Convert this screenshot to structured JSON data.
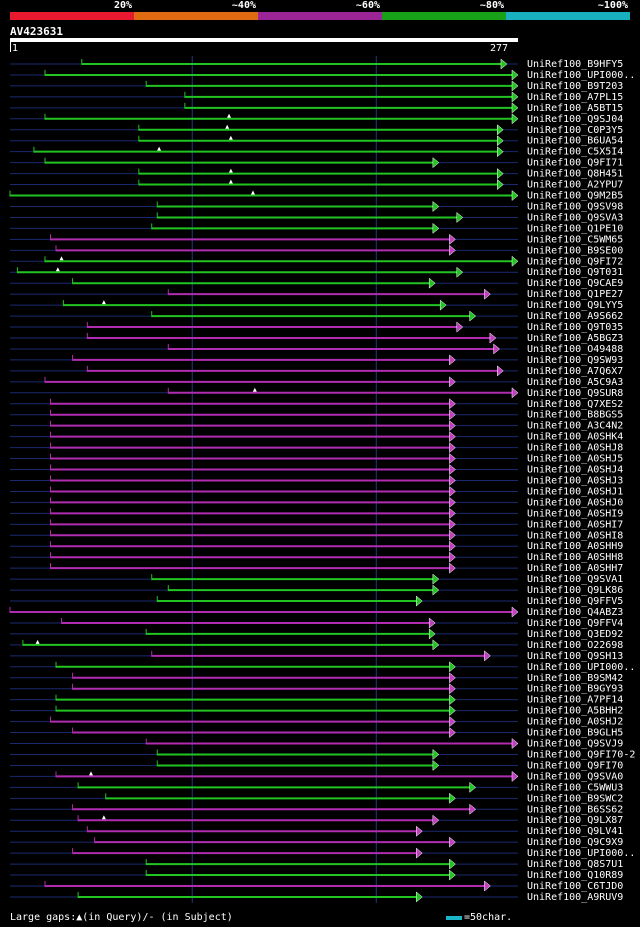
{
  "legend": {
    "segments": [
      {
        "label": "20%",
        "color": "#e8182e"
      },
      {
        "label": "~40%",
        "color": "#e06a12"
      },
      {
        "label": "~60%",
        "color": "#9b2597"
      },
      {
        "label": "~80%",
        "color": "#18a018"
      },
      {
        "label": "~100%",
        "color": "#18b0c0"
      }
    ]
  },
  "query": {
    "name": "AV423631",
    "start": "1",
    "end": "277",
    "length": 277
  },
  "colors": {
    "green": "#22c422",
    "purple": "#b02cb0",
    "thin": "#1a2a70",
    "grid": "#233a80",
    "arrow_green": "#22c422",
    "arrow_purple": "#c040c0"
  },
  "hits": [
    {
      "name": "UniRef100_B9HFY5",
      "start": 40,
      "end": 271,
      "color": "green",
      "gap": null
    },
    {
      "name": "UniRef100_UPI000..",
      "start": 20,
      "end": 277,
      "color": "green",
      "gap": null
    },
    {
      "name": "UniRef100_B9T203",
      "start": 75,
      "end": 277,
      "color": "green",
      "gap": null
    },
    {
      "name": "UniRef100_A7PL15",
      "start": 96,
      "end": 277,
      "color": "green",
      "gap": null
    },
    {
      "name": "UniRef100_A5BT15",
      "start": 96,
      "end": 277,
      "color": "green",
      "gap": null
    },
    {
      "name": "UniRef100_Q9SJ04",
      "start": 20,
      "end": 277,
      "color": "green",
      "gap": 120
    },
    {
      "name": "UniRef100_C0P3Y5",
      "start": 71,
      "end": 269,
      "color": "green",
      "gap": 119
    },
    {
      "name": "UniRef100_B6UA54",
      "start": 71,
      "end": 269,
      "color": "green",
      "gap": 121
    },
    {
      "name": "UniRef100_C5X5I4",
      "start": 14,
      "end": 269,
      "color": "green",
      "gap": 82
    },
    {
      "name": "UniRef100_Q9FI71",
      "start": 20,
      "end": 234,
      "color": "green",
      "gap": null
    },
    {
      "name": "UniRef100_Q8H451",
      "start": 71,
      "end": 269,
      "color": "green",
      "gap": 121
    },
    {
      "name": "UniRef100_A2YPU7",
      "start": 71,
      "end": 269,
      "color": "green",
      "gap": 121
    },
    {
      "name": "UniRef100_Q9M2B5",
      "start": 1,
      "end": 277,
      "color": "green",
      "gap": 133
    },
    {
      "name": "UniRef100_Q9SV98",
      "start": 81,
      "end": 234,
      "color": "green",
      "gap": null
    },
    {
      "name": "UniRef100_Q9SVA3",
      "start": 81,
      "end": 247,
      "color": "green",
      "gap": null
    },
    {
      "name": "UniRef100_Q1PE10",
      "start": 78,
      "end": 234,
      "color": "green",
      "gap": null
    },
    {
      "name": "UniRef100_C5WM65",
      "start": 23,
      "end": 243,
      "color": "purple",
      "gap": null
    },
    {
      "name": "UniRef100_B9SE00",
      "start": 26,
      "end": 243,
      "color": "purple",
      "gap": null
    },
    {
      "name": "UniRef100_Q9FI72",
      "start": 20,
      "end": 277,
      "color": "green",
      "gap": 29
    },
    {
      "name": "UniRef100_Q9T031",
      "start": 5,
      "end": 247,
      "color": "green",
      "gap": 27
    },
    {
      "name": "UniRef100_Q9CAE9",
      "start": 35,
      "end": 232,
      "color": "green",
      "gap": null
    },
    {
      "name": "UniRef100_Q1PE27",
      "start": 87,
      "end": 262,
      "color": "purple",
      "gap": null
    },
    {
      "name": "UniRef100_Q9LYY5",
      "start": 30,
      "end": 238,
      "color": "green",
      "gap": 52
    },
    {
      "name": "UniRef100_A9S662",
      "start": 78,
      "end": 254,
      "color": "green",
      "gap": null
    },
    {
      "name": "UniRef100_Q9T035",
      "start": 43,
      "end": 247,
      "color": "purple",
      "gap": null
    },
    {
      "name": "UniRef100_A5BGZ3",
      "start": 43,
      "end": 265,
      "color": "purple",
      "gap": null
    },
    {
      "name": "UniRef100_O49488",
      "start": 87,
      "end": 267,
      "color": "purple",
      "gap": null
    },
    {
      "name": "UniRef100_Q9SW93",
      "start": 35,
      "end": 243,
      "color": "purple",
      "gap": null
    },
    {
      "name": "UniRef100_A7Q6X7",
      "start": 43,
      "end": 269,
      "color": "purple",
      "gap": null
    },
    {
      "name": "UniRef100_A5C9A3",
      "start": 20,
      "end": 243,
      "color": "purple",
      "gap": null
    },
    {
      "name": "UniRef100_Q9SUR8",
      "start": 87,
      "end": 277,
      "color": "purple",
      "gap": 134
    },
    {
      "name": "UniRef100_Q7XES2",
      "start": 23,
      "end": 243,
      "color": "purple",
      "gap": null
    },
    {
      "name": "UniRef100_B8BGS5",
      "start": 23,
      "end": 243,
      "color": "purple",
      "gap": null
    },
    {
      "name": "UniRef100_A3C4N2",
      "start": 23,
      "end": 243,
      "color": "purple",
      "gap": null
    },
    {
      "name": "UniRef100_A0SHK4",
      "start": 23,
      "end": 243,
      "color": "purple",
      "gap": null
    },
    {
      "name": "UniRef100_A0SHJ8",
      "start": 23,
      "end": 243,
      "color": "purple",
      "gap": null
    },
    {
      "name": "UniRef100_A0SHJ5",
      "start": 23,
      "end": 243,
      "color": "purple",
      "gap": null
    },
    {
      "name": "UniRef100_A0SHJ4",
      "start": 23,
      "end": 243,
      "color": "purple",
      "gap": null
    },
    {
      "name": "UniRef100_A0SHJ3",
      "start": 23,
      "end": 243,
      "color": "purple",
      "gap": null
    },
    {
      "name": "UniRef100_A0SHJ1",
      "start": 23,
      "end": 243,
      "color": "purple",
      "gap": null
    },
    {
      "name": "UniRef100_A0SHJ0",
      "start": 23,
      "end": 243,
      "color": "purple",
      "gap": null
    },
    {
      "name": "UniRef100_A0SHI9",
      "start": 23,
      "end": 243,
      "color": "purple",
      "gap": null
    },
    {
      "name": "UniRef100_A0SHI7",
      "start": 23,
      "end": 243,
      "color": "purple",
      "gap": null
    },
    {
      "name": "UniRef100_A0SHI8",
      "start": 23,
      "end": 243,
      "color": "purple",
      "gap": null
    },
    {
      "name": "UniRef100_A0SHH9",
      "start": 23,
      "end": 243,
      "color": "purple",
      "gap": null
    },
    {
      "name": "UniRef100_A0SHH8",
      "start": 23,
      "end": 243,
      "color": "purple",
      "gap": null
    },
    {
      "name": "UniRef100_A0SHH7",
      "start": 23,
      "end": 243,
      "color": "purple",
      "gap": null
    },
    {
      "name": "UniRef100_Q9SVA1",
      "start": 78,
      "end": 234,
      "color": "green",
      "gap": null
    },
    {
      "name": "UniRef100_Q9LK86",
      "start": 87,
      "end": 234,
      "color": "green",
      "gap": null
    },
    {
      "name": "UniRef100_Q9FFV5",
      "start": 81,
      "end": 225,
      "color": "green",
      "gap": null
    },
    {
      "name": "UniRef100_Q4ABZ3",
      "start": 1,
      "end": 277,
      "color": "purple",
      "gap": null
    },
    {
      "name": "UniRef100_Q9FFV4",
      "start": 29,
      "end": 232,
      "color": "purple",
      "gap": null
    },
    {
      "name": "UniRef100_Q3ED92",
      "start": 75,
      "end": 232,
      "color": "green",
      "gap": null
    },
    {
      "name": "UniRef100_O22698",
      "start": 8,
      "end": 234,
      "color": "green",
      "gap": 16
    },
    {
      "name": "UniRef100_Q9SH13",
      "start": 78,
      "end": 262,
      "color": "purple",
      "gap": null
    },
    {
      "name": "UniRef100_UPI000..",
      "start": 26,
      "end": 243,
      "color": "green",
      "gap": null
    },
    {
      "name": "UniRef100_B9SM42",
      "start": 35,
      "end": 243,
      "color": "purple",
      "gap": null
    },
    {
      "name": "UniRef100_B9GY93",
      "start": 35,
      "end": 243,
      "color": "purple",
      "gap": null
    },
    {
      "name": "UniRef100_A7PF14",
      "start": 26,
      "end": 243,
      "color": "green",
      "gap": null
    },
    {
      "name": "UniRef100_A5BHH2",
      "start": 26,
      "end": 243,
      "color": "green",
      "gap": null
    },
    {
      "name": "UniRef100_A0SHJ2",
      "start": 23,
      "end": 243,
      "color": "purple",
      "gap": null
    },
    {
      "name": "UniRef100_B9GLH5",
      "start": 35,
      "end": 243,
      "color": "purple",
      "gap": null
    },
    {
      "name": "UniRef100_Q9SVJ9",
      "start": 75,
      "end": 277,
      "color": "purple",
      "gap": null
    },
    {
      "name": "UniRef100_Q9FI70-2",
      "start": 81,
      "end": 234,
      "color": "green",
      "gap": null
    },
    {
      "name": "UniRef100_Q9FI70",
      "start": 81,
      "end": 234,
      "color": "green",
      "gap": null
    },
    {
      "name": "UniRef100_Q9SVA0",
      "start": 26,
      "end": 277,
      "color": "purple",
      "gap": 45
    },
    {
      "name": "UniRef100_C5WWU3",
      "start": 38,
      "end": 254,
      "color": "green",
      "gap": null
    },
    {
      "name": "UniRef100_B9SWC2",
      "start": 53,
      "end": 243,
      "color": "green",
      "gap": null
    },
    {
      "name": "UniRef100_B6SS62",
      "start": 35,
      "end": 254,
      "color": "purple",
      "gap": null
    },
    {
      "name": "UniRef100_Q9LX87",
      "start": 38,
      "end": 234,
      "color": "purple",
      "gap": 52
    },
    {
      "name": "UniRef100_Q9LV41",
      "start": 43,
      "end": 225,
      "color": "purple",
      "gap": null
    },
    {
      "name": "UniRef100_Q9C9X9",
      "start": 47,
      "end": 243,
      "color": "purple",
      "gap": null
    },
    {
      "name": "UniRef100_UPI000..",
      "start": 35,
      "end": 225,
      "color": "purple",
      "gap": null
    },
    {
      "name": "UniRef100_Q8S7U1",
      "start": 75,
      "end": 243,
      "color": "green",
      "gap": null
    },
    {
      "name": "UniRef100_Q10R89",
      "start": 75,
      "end": 243,
      "color": "green",
      "gap": null
    },
    {
      "name": "UniRef100_C6TJD0",
      "start": 20,
      "end": 262,
      "color": "purple",
      "gap": null
    },
    {
      "name": "UniRef100_A9RUV9",
      "start": 38,
      "end": 225,
      "color": "green",
      "gap": null
    }
  ],
  "footer": {
    "text": "Large gaps:▲(in Query)/- (in Subject)",
    "scale_label": "=50char."
  }
}
